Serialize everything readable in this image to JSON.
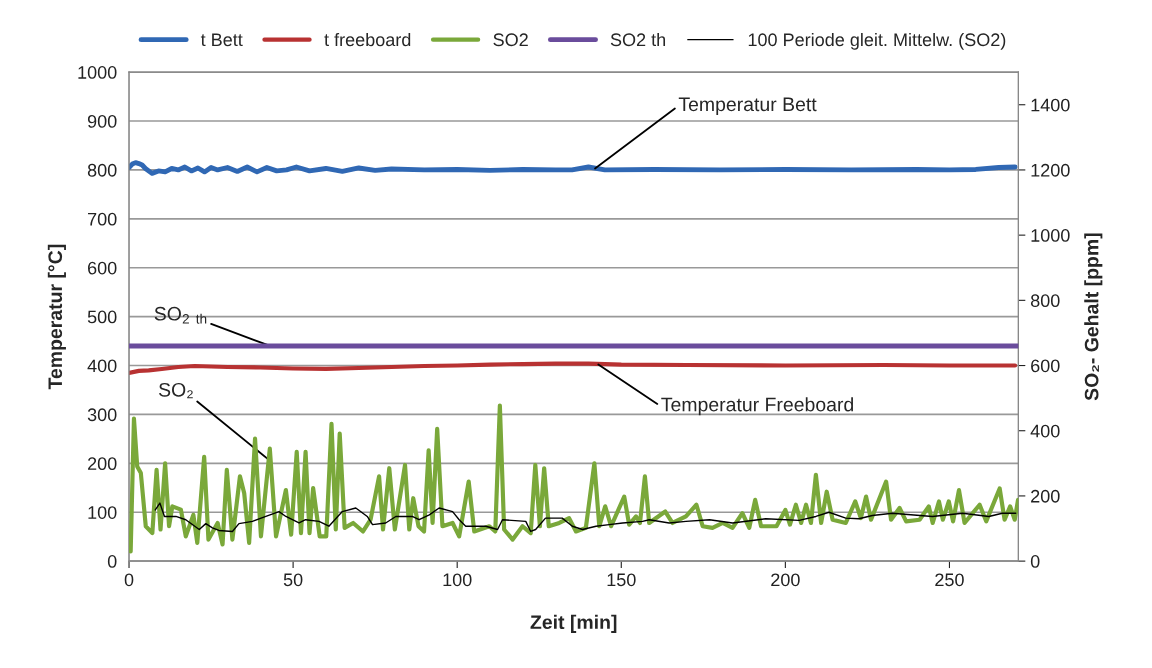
{
  "chart_data": {
    "type": "line",
    "xlabel": "Zeit [min]",
    "ylabel": "Temperatur [°C]",
    "y2label": "SO₂- Gehalt [ppm]",
    "xlim": [
      0,
      271
    ],
    "xticks": [
      0,
      50,
      100,
      150,
      200,
      250
    ],
    "ylim": [
      0,
      1000
    ],
    "yticks": [
      0,
      100,
      200,
      300,
      400,
      500,
      600,
      700,
      800,
      900,
      1000
    ],
    "y2lim": [
      0,
      1500
    ],
    "y2ticks": [
      0,
      200,
      400,
      600,
      800,
      1000,
      1200,
      1400
    ],
    "grid": "y",
    "legend": "top",
    "series": [
      {
        "name": "t Bett",
        "color": "#3068b4",
        "x": [
          0,
          1,
          2,
          3,
          4,
          5,
          7,
          9,
          11,
          13,
          15,
          17,
          19,
          21,
          23,
          25,
          27,
          30,
          33,
          36,
          39,
          42,
          45,
          48,
          51,
          55,
          60,
          65,
          70,
          75,
          80,
          90,
          100,
          110,
          120,
          130,
          135,
          140,
          145,
          160,
          180,
          200,
          220,
          240,
          250,
          258,
          265,
          270
        ],
        "values": [
          805,
          812,
          815,
          813,
          810,
          803,
          793,
          798,
          796,
          803,
          800,
          806,
          798,
          804,
          796,
          805,
          800,
          805,
          797,
          806,
          796,
          805,
          798,
          800,
          806,
          798,
          803,
          797,
          804,
          799,
          802,
          800,
          801,
          799,
          801,
          800,
          800,
          806,
          800,
          801,
          800,
          801,
          800,
          801,
          800,
          801,
          805,
          806
        ]
      },
      {
        "name": "t freeboard",
        "color": "#b83232",
        "x": [
          0,
          3,
          6,
          10,
          15,
          20,
          25,
          30,
          40,
          50,
          60,
          70,
          80,
          90,
          100,
          110,
          120,
          130,
          140,
          150,
          170,
          200,
          230,
          250,
          270
        ],
        "values": [
          385,
          389,
          390,
          393,
          397,
          399,
          398,
          397,
          396,
          394,
          393,
          395,
          397,
          399,
          400,
          402,
          403,
          404,
          404,
          402,
          401,
          400,
          401,
          400,
          400
        ]
      },
      {
        "name": "SO2",
        "color": "#7aa83a",
        "axis": "y2",
        "x": [
          0.5,
          1.5,
          2.5,
          3.6,
          5.1,
          7.1,
          8.4,
          9.6,
          11,
          12.2,
          13.2,
          15.8,
          17.3,
          19.6,
          20.8,
          22.9,
          24.2,
          27,
          28.5,
          29.8,
          31.5,
          33.8,
          35.1,
          36.6,
          38.4,
          40.2,
          42.9,
          44.8,
          47.8,
          49.4,
          51.1,
          52.4,
          53.8,
          55,
          56.1,
          58.1,
          60.1,
          61.7,
          63,
          64.2,
          65.7,
          68.3,
          71.3,
          73.6,
          76.2,
          77.4,
          79.3,
          81,
          84.1,
          85.4,
          86.6,
          88.2,
          89.9,
          91.3,
          92.5,
          93.9,
          95.5,
          98.6,
          100.6,
          103.5,
          105.2,
          109.8,
          111.6,
          113,
          114.3,
          116.9,
          119.9,
          122.4,
          123.8,
          125.2,
          126.5,
          127.9,
          131.1,
          134.1,
          136.2,
          139.2,
          141.8,
          143.3,
          145.1,
          146.9,
          150.9,
          152.4,
          154.5,
          155.7,
          157.2,
          158.5,
          163.4,
          165.6,
          169.7,
          172.9,
          174.8,
          177.8,
          180.9,
          183.9,
          186.9,
          189,
          190.8,
          192.6,
          197.3,
          200,
          201.4,
          203.2,
          204.8,
          206.3,
          207.8,
          209.3,
          210.9,
          212.6,
          214.4,
          218.4,
          221.3,
          223,
          224.6,
          226.1,
          230.7,
          232.2,
          234.8,
          236.8,
          240.9,
          243.7,
          244.9,
          246.8,
          248,
          249.8,
          251.1,
          252.9,
          254.6,
          259.2,
          261.2,
          265.3,
          266.8,
          268.5,
          269.9,
          270.9
        ],
        "values": [
          30,
          437,
          290,
          270,
          107,
          86,
          280,
          97,
          300,
          107,
          168,
          158,
          76,
          142,
          56,
          320,
          66,
          117,
          51,
          280,
          66,
          260,
          208,
          56,
          376,
          76,
          345,
          76,
          218,
          81,
          335,
          86,
          335,
          86,
          224,
          76,
          76,
          421,
          97,
          391,
          102,
          117,
          91,
          127,
          260,
          97,
          285,
          97,
          295,
          97,
          193,
          107,
          91,
          340,
          117,
          406,
          107,
          117,
          76,
          244,
          91,
          107,
          91,
          477,
          97,
          66,
          107,
          86,
          295,
          107,
          285,
          107,
          117,
          132,
          91,
          102,
          300,
          107,
          168,
          107,
          198,
          112,
          137,
          117,
          260,
          117,
          152,
          117,
          137,
          173,
          107,
          102,
          117,
          102,
          147,
          102,
          188,
          107,
          107,
          157,
          112,
          173,
          117,
          173,
          117,
          265,
          117,
          213,
          127,
          117,
          183,
          132,
          198,
          127,
          244,
          127,
          163,
          122,
          127,
          168,
          117,
          183,
          127,
          183,
          122,
          218,
          117,
          173,
          122,
          223,
          127,
          168,
          127,
          188
        ]
      },
      {
        "name": "SO2 th",
        "color": "#6a4c9c",
        "axis": "y2",
        "x": [
          0,
          271
        ],
        "values": [
          660,
          660
        ]
      },
      {
        "name": "100 Periode gleit. Mittelw. (SO2)",
        "color": "#000000",
        "axis": "y2",
        "x": [
          8.0,
          9.4,
          10.8,
          14.3,
          17.3,
          21.4,
          23.4,
          25.4,
          27.4,
          31.5,
          33.5,
          37.6,
          41.7,
          45.7,
          47.8,
          51.8,
          53.8,
          57.9,
          60.9,
          65,
          69.1,
          72.6,
          74.2,
          78.2,
          81.3,
          86.3,
          88.4,
          91.5,
          94.5,
          98.6,
          100.6,
          102.6,
          108.7,
          112.3,
          113.8,
          120.9,
          122.4,
          123.9,
          126.9,
          132,
          135.1,
          138.2,
          142.3,
          146.3,
          150.4,
          156.5,
          158.5,
          164.6,
          169.7,
          176.9,
          183.9,
          194,
          204.2,
          209.3,
          213.3,
          218.4,
          222.4,
          226.5,
          232.6,
          244.8,
          254,
          262,
          266.1,
          270.2
        ],
        "values": [
          157,
          178,
          137,
          137,
          127,
          97,
          115,
          102,
          94,
          91,
          115,
          122,
          137,
          152,
          137,
          117,
          127,
          122,
          107,
          152,
          163,
          137,
          112,
          117,
          137,
          137,
          127,
          142,
          163,
          152,
          127,
          107,
          107,
          97,
          127,
          122,
          91,
          97,
          132,
          132,
          107,
          97,
          107,
          112,
          117,
          122,
          127,
          117,
          122,
          127,
          117,
          130,
          125,
          137,
          150,
          132,
          130,
          140,
          147,
          137,
          147,
          137,
          147,
          147
        ]
      }
    ],
    "annotations": [
      {
        "text": "Temperatur Bett",
        "x": 142,
        "y": 803
      },
      {
        "text": "SO$_{2 th}$",
        "x": 43,
        "y": 440
      },
      {
        "text": "Temperatur Freeboard",
        "x": 143,
        "y": 402
      },
      {
        "text": "SO₂",
        "x": 43,
        "y": 205
      }
    ]
  }
}
